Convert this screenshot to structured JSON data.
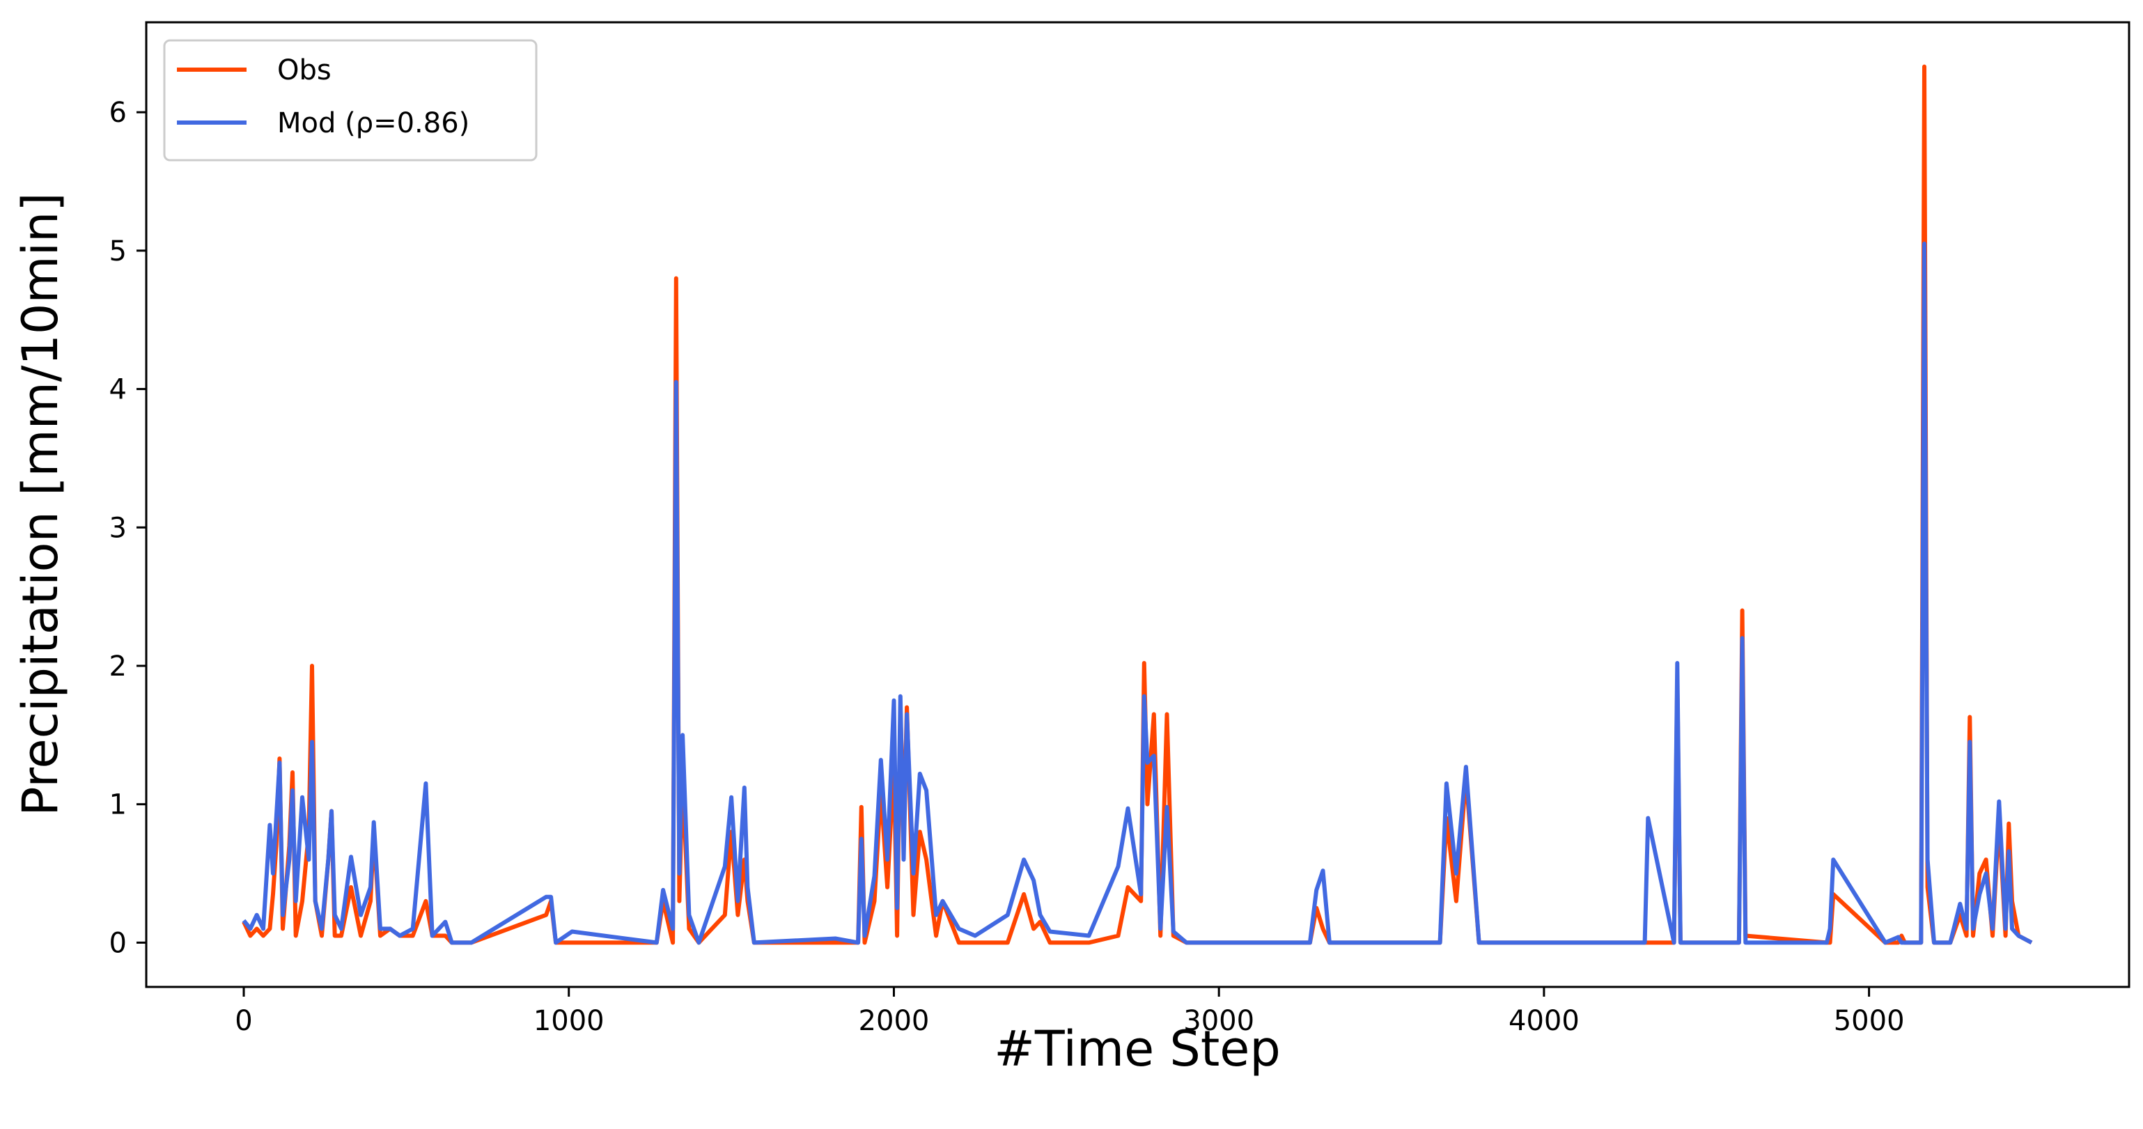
{
  "chart_data": {
    "type": "line",
    "title": "",
    "xlabel": "#Time Step",
    "ylabel": "Precipitation [mm/10min]",
    "xlim": [
      -300,
      5800
    ],
    "ylim": [
      -0.32,
      6.65
    ],
    "xticks": [
      0,
      1000,
      2000,
      3000,
      4000,
      5000
    ],
    "yticks": [
      0,
      1,
      2,
      3,
      4,
      5,
      6
    ],
    "grid": false,
    "legend": {
      "position": "top-left",
      "entries": [
        {
          "label": "Obs",
          "color": "#FF4500"
        },
        {
          "label": "Mod (ρ=0.86)",
          "color": "#4169E1"
        }
      ]
    },
    "series": [
      {
        "name": "Obs",
        "color": "#FF4500",
        "x": [
          0,
          20,
          40,
          60,
          80,
          90,
          100,
          110,
          120,
          140,
          150,
          160,
          180,
          200,
          210,
          220,
          240,
          260,
          270,
          280,
          300,
          330,
          360,
          390,
          400,
          420,
          450,
          480,
          520,
          560,
          580,
          620,
          640,
          660,
          700,
          930,
          945,
          960,
          1010,
          1270,
          1290,
          1320,
          1330,
          1340,
          1350,
          1370,
          1400,
          1480,
          1490,
          1500,
          1520,
          1540,
          1550,
          1570,
          1820,
          1890,
          1900,
          1910,
          1940,
          1960,
          1980,
          2000,
          2010,
          2020,
          2030,
          2040,
          2060,
          2080,
          2100,
          2130,
          2150,
          2200,
          2250,
          2350,
          2400,
          2430,
          2450,
          2480,
          2600,
          2690,
          2720,
          2760,
          2770,
          2780,
          2800,
          2820,
          2840,
          2860,
          2900,
          3280,
          3300,
          3320,
          3340,
          3680,
          3700,
          3730,
          3760,
          3800,
          4310,
          4320,
          4400,
          4410,
          4420,
          4600,
          4610,
          4620,
          4870,
          4880,
          4890,
          5050,
          5090,
          5100,
          5110,
          5160,
          5170,
          5180,
          5200,
          5250,
          5280,
          5300,
          5310,
          5320,
          5340,
          5360,
          5380,
          5400,
          5420,
          5430,
          5440,
          5460,
          5500
        ],
        "values": [
          0.15,
          0.05,
          0.1,
          0.05,
          0.1,
          0.35,
          0.7,
          1.33,
          0.1,
          0.7,
          1.23,
          0.05,
          0.3,
          0.8,
          2.0,
          0.3,
          0.05,
          0.6,
          0.95,
          0.05,
          0.05,
          0.4,
          0.05,
          0.3,
          0.8,
          0.05,
          0.1,
          0.05,
          0.05,
          0.3,
          0.05,
          0.05,
          0.0,
          0.0,
          0.0,
          0.2,
          0.3,
          0.0,
          0.0,
          0.0,
          0.3,
          0.0,
          4.8,
          0.3,
          1.2,
          0.1,
          0.0,
          0.2,
          0.5,
          0.8,
          0.2,
          0.6,
          0.3,
          0.0,
          0.0,
          0.0,
          0.98,
          0.0,
          0.3,
          1.1,
          0.4,
          1.3,
          0.05,
          1.7,
          0.8,
          1.7,
          0.2,
          0.8,
          0.6,
          0.05,
          0.3,
          0.0,
          0.0,
          0.0,
          0.35,
          0.1,
          0.15,
          0.0,
          0.0,
          0.05,
          0.4,
          0.3,
          2.02,
          1.0,
          1.65,
          0.05,
          1.65,
          0.05,
          0.0,
          0.0,
          0.25,
          0.1,
          0.0,
          0.0,
          0.9,
          0.3,
          1.2,
          0.0,
          0.0,
          0.0,
          0.0,
          1.9,
          0.0,
          0.0,
          2.4,
          0.05,
          0.0,
          0.0,
          0.35,
          0.0,
          0.0,
          0.05,
          0.0,
          0.0,
          6.33,
          0.4,
          0.0,
          0.0,
          0.2,
          0.05,
          1.63,
          0.05,
          0.5,
          0.6,
          0.05,
          0.9,
          0.05,
          0.86,
          0.3,
          0.05,
          0.0
        ]
      },
      {
        "name": "Mod (ρ=0.86)",
        "color": "#4169E1",
        "x": [
          0,
          20,
          40,
          60,
          80,
          90,
          100,
          110,
          120,
          140,
          150,
          160,
          180,
          200,
          210,
          220,
          240,
          260,
          270,
          280,
          300,
          330,
          360,
          390,
          400,
          420,
          450,
          480,
          520,
          560,
          580,
          620,
          640,
          660,
          700,
          930,
          945,
          960,
          1010,
          1270,
          1290,
          1320,
          1330,
          1340,
          1350,
          1370,
          1400,
          1480,
          1490,
          1500,
          1520,
          1540,
          1550,
          1570,
          1820,
          1890,
          1900,
          1910,
          1940,
          1960,
          1980,
          2000,
          2010,
          2020,
          2030,
          2040,
          2060,
          2080,
          2100,
          2130,
          2150,
          2200,
          2250,
          2350,
          2400,
          2430,
          2450,
          2480,
          2600,
          2690,
          2720,
          2760,
          2770,
          2780,
          2800,
          2820,
          2840,
          2860,
          2900,
          3280,
          3300,
          3320,
          3340,
          3680,
          3700,
          3730,
          3760,
          3800,
          4310,
          4320,
          4400,
          4410,
          4420,
          4600,
          4610,
          4620,
          4870,
          4880,
          4890,
          5050,
          5090,
          5100,
          5110,
          5160,
          5170,
          5180,
          5200,
          5250,
          5280,
          5300,
          5310,
          5320,
          5340,
          5360,
          5380,
          5400,
          5420,
          5430,
          5440,
          5460,
          5500
        ],
        "values": [
          0.16,
          0.1,
          0.2,
          0.1,
          0.85,
          0.5,
          0.9,
          1.3,
          0.2,
          0.6,
          1.1,
          0.3,
          1.05,
          0.6,
          1.45,
          0.3,
          0.1,
          0.6,
          0.95,
          0.2,
          0.1,
          0.62,
          0.2,
          0.4,
          0.87,
          0.1,
          0.1,
          0.05,
          0.1,
          1.15,
          0.05,
          0.15,
          0.0,
          0.0,
          0.0,
          0.33,
          0.33,
          0.0,
          0.08,
          0.0,
          0.38,
          0.1,
          4.05,
          0.5,
          1.5,
          0.2,
          0.0,
          0.55,
          0.8,
          1.05,
          0.3,
          1.12,
          0.4,
          0.0,
          0.03,
          0.0,
          0.75,
          0.05,
          0.48,
          1.32,
          0.6,
          1.75,
          0.25,
          1.78,
          0.6,
          1.65,
          0.5,
          1.22,
          1.1,
          0.2,
          0.3,
          0.1,
          0.05,
          0.2,
          0.6,
          0.45,
          0.2,
          0.08,
          0.05,
          0.55,
          0.97,
          0.35,
          1.78,
          1.3,
          1.35,
          0.1,
          0.98,
          0.08,
          0.0,
          0.0,
          0.38,
          0.52,
          0.0,
          0.0,
          1.15,
          0.5,
          1.27,
          0.0,
          0.0,
          0.9,
          0.0,
          2.02,
          0.0,
          0.0,
          2.2,
          0.0,
          0.0,
          0.1,
          0.6,
          0.0,
          0.04,
          0.0,
          0.0,
          0.0,
          5.05,
          0.6,
          0.0,
          0.0,
          0.28,
          0.1,
          1.45,
          0.1,
          0.35,
          0.5,
          0.1,
          1.02,
          0.1,
          0.66,
          0.1,
          0.05,
          0.0
        ]
      }
    ]
  }
}
